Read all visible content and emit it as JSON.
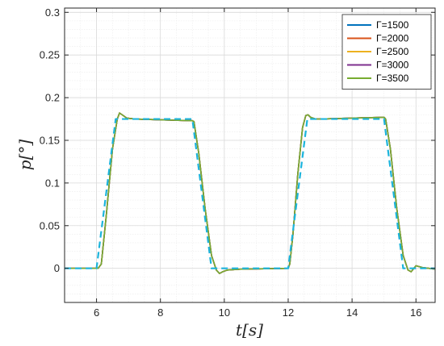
{
  "chart_data": {
    "type": "line",
    "title": "",
    "xlabel": "t[s]",
    "ylabel": "p[°]",
    "xlim": [
      5,
      16.6
    ],
    "ylim": [
      -0.04,
      0.305
    ],
    "x_ticks": [
      6,
      8,
      10,
      12,
      14,
      16
    ],
    "x_tick_labels": [
      "6",
      "8",
      "10",
      "12",
      "14",
      "16"
    ],
    "y_ticks": [
      0,
      0.05,
      0.1,
      0.15,
      0.2,
      0.25,
      0.3
    ],
    "y_tick_labels": [
      "0",
      "0.05",
      "0.1",
      "0.15",
      "0.2",
      "0.25",
      "0.3"
    ],
    "grid": true,
    "minor_grid": true,
    "legend_position": "top-right",
    "series": [
      {
        "name": "Γ=1500",
        "color": "#0072BD",
        "style": "solid",
        "x": [
          5,
          6.05,
          6.15,
          6.3,
          6.5,
          6.65,
          6.72,
          6.8,
          6.95,
          7.2,
          8,
          9.0,
          9.05,
          9.2,
          9.4,
          9.6,
          9.75,
          9.85,
          9.95,
          10.1,
          10.5,
          12.0,
          12.05,
          12.15,
          12.3,
          12.45,
          12.55,
          12.62,
          12.7,
          12.85,
          13.0,
          14.0,
          15.0,
          15.05,
          15.2,
          15.4,
          15.6,
          15.75,
          15.85,
          16.0,
          16.2,
          16.6
        ],
        "y": [
          0,
          0,
          0.005,
          0.06,
          0.14,
          0.175,
          0.182,
          0.18,
          0.176,
          0.175,
          0.174,
          0.173,
          0.172,
          0.135,
          0.07,
          0.015,
          -0.002,
          -0.006,
          -0.004,
          -0.002,
          -0.001,
          0,
          0.005,
          0.04,
          0.11,
          0.165,
          0.179,
          0.18,
          0.177,
          0.175,
          0.175,
          0.176,
          0.177,
          0.175,
          0.14,
          0.07,
          0.015,
          -0.002,
          -0.004,
          0.003,
          0.001,
          -0.001
        ]
      },
      {
        "name": "Γ=2000",
        "color": "#D95319",
        "style": "solid",
        "x": [
          5,
          6.05,
          6.15,
          6.3,
          6.5,
          6.65,
          6.72,
          6.8,
          6.95,
          7.2,
          8,
          9.0,
          9.05,
          9.2,
          9.4,
          9.6,
          9.75,
          9.85,
          9.95,
          10.1,
          10.5,
          12.0,
          12.05,
          12.15,
          12.3,
          12.45,
          12.55,
          12.62,
          12.7,
          12.85,
          13.0,
          14.0,
          15.0,
          15.05,
          15.2,
          15.4,
          15.6,
          15.75,
          15.85,
          16.0,
          16.2,
          16.6
        ],
        "y": [
          0,
          0,
          0.005,
          0.06,
          0.14,
          0.175,
          0.182,
          0.18,
          0.176,
          0.175,
          0.174,
          0.173,
          0.172,
          0.135,
          0.07,
          0.015,
          -0.002,
          -0.006,
          -0.004,
          -0.002,
          -0.001,
          0,
          0.005,
          0.04,
          0.11,
          0.165,
          0.179,
          0.18,
          0.177,
          0.175,
          0.175,
          0.176,
          0.177,
          0.175,
          0.14,
          0.07,
          0.015,
          -0.002,
          -0.004,
          0.003,
          0.001,
          -0.001
        ]
      },
      {
        "name": "Γ=2500",
        "color": "#EDB120",
        "style": "solid",
        "x": [
          5,
          6.05,
          6.15,
          6.3,
          6.5,
          6.65,
          6.72,
          6.8,
          6.95,
          7.2,
          8,
          9.0,
          9.05,
          9.2,
          9.4,
          9.6,
          9.75,
          9.85,
          9.95,
          10.1,
          10.5,
          12.0,
          12.05,
          12.15,
          12.3,
          12.45,
          12.55,
          12.62,
          12.7,
          12.85,
          13.0,
          14.0,
          15.0,
          15.05,
          15.2,
          15.4,
          15.6,
          15.75,
          15.85,
          16.0,
          16.2,
          16.6
        ],
        "y": [
          0,
          0,
          0.005,
          0.06,
          0.14,
          0.175,
          0.182,
          0.18,
          0.176,
          0.175,
          0.174,
          0.173,
          0.172,
          0.135,
          0.07,
          0.015,
          -0.002,
          -0.006,
          -0.004,
          -0.002,
          -0.001,
          0,
          0.005,
          0.04,
          0.11,
          0.165,
          0.179,
          0.18,
          0.177,
          0.175,
          0.175,
          0.176,
          0.177,
          0.175,
          0.14,
          0.07,
          0.015,
          -0.002,
          -0.004,
          0.003,
          0.001,
          -0.001
        ]
      },
      {
        "name": "Γ=3000",
        "color": "#7E2F8E",
        "style": "solid",
        "x": [
          5,
          6.05,
          6.15,
          6.3,
          6.5,
          6.65,
          6.72,
          6.8,
          6.95,
          7.2,
          8,
          9.0,
          9.05,
          9.2,
          9.4,
          9.6,
          9.75,
          9.85,
          9.95,
          10.1,
          10.5,
          12.0,
          12.05,
          12.15,
          12.3,
          12.45,
          12.55,
          12.62,
          12.7,
          12.85,
          13.0,
          14.0,
          15.0,
          15.05,
          15.2,
          15.4,
          15.6,
          15.75,
          15.85,
          16.0,
          16.2,
          16.6
        ],
        "y": [
          0,
          0,
          0.005,
          0.06,
          0.14,
          0.175,
          0.182,
          0.18,
          0.176,
          0.175,
          0.174,
          0.173,
          0.172,
          0.135,
          0.07,
          0.015,
          -0.002,
          -0.006,
          -0.004,
          -0.002,
          -0.001,
          0,
          0.005,
          0.04,
          0.11,
          0.165,
          0.179,
          0.18,
          0.177,
          0.175,
          0.175,
          0.176,
          0.177,
          0.175,
          0.14,
          0.07,
          0.015,
          -0.002,
          -0.004,
          0.003,
          0.001,
          -0.001
        ]
      },
      {
        "name": "Γ=3500",
        "color": "#77AC30",
        "style": "solid",
        "x": [
          5,
          6.05,
          6.15,
          6.3,
          6.5,
          6.65,
          6.72,
          6.8,
          6.95,
          7.2,
          8,
          9.0,
          9.05,
          9.2,
          9.4,
          9.6,
          9.75,
          9.85,
          9.95,
          10.1,
          10.5,
          12.0,
          12.05,
          12.15,
          12.3,
          12.45,
          12.55,
          12.62,
          12.7,
          12.85,
          13.0,
          14.0,
          15.0,
          15.05,
          15.2,
          15.4,
          15.6,
          15.75,
          15.85,
          16.0,
          16.2,
          16.6
        ],
        "y": [
          0,
          0,
          0.005,
          0.06,
          0.14,
          0.175,
          0.182,
          0.18,
          0.176,
          0.175,
          0.174,
          0.173,
          0.172,
          0.135,
          0.07,
          0.015,
          -0.002,
          -0.006,
          -0.004,
          -0.002,
          -0.001,
          0,
          0.005,
          0.04,
          0.11,
          0.165,
          0.179,
          0.18,
          0.177,
          0.175,
          0.175,
          0.176,
          0.177,
          0.175,
          0.14,
          0.07,
          0.015,
          -0.002,
          -0.004,
          0.003,
          0.001,
          -0.001
        ]
      },
      {
        "name": "",
        "color": "#1CB4DC",
        "style": "dashed",
        "x": [
          5,
          6.0,
          6.6,
          9.0,
          9.6,
          12.0,
          12.6,
          15.0,
          15.6,
          16.6
        ],
        "y": [
          0,
          0,
          0.175,
          0.175,
          0,
          0,
          0.175,
          0.175,
          0,
          0
        ]
      }
    ]
  }
}
